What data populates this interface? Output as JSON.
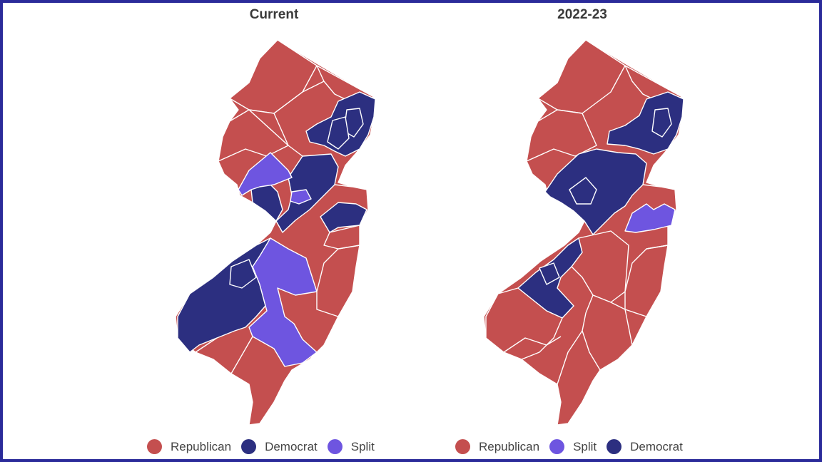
{
  "colors": {
    "republican": "#c44f4f",
    "democrat": "#2c2f80",
    "split": "#6e55e0",
    "frame": "#2b2b9a"
  },
  "maps": [
    {
      "title": "Current",
      "legend": [
        {
          "label": "Republican",
          "party": "republican"
        },
        {
          "label": "Democrat",
          "party": "democrat"
        },
        {
          "label": "Split",
          "party": "split"
        }
      ]
    },
    {
      "title": "2022-23",
      "legend": [
        {
          "label": "Republican",
          "party": "republican"
        },
        {
          "label": "Split",
          "party": "split"
        },
        {
          "label": "Democrat",
          "party": "democrat"
        }
      ]
    }
  ]
}
